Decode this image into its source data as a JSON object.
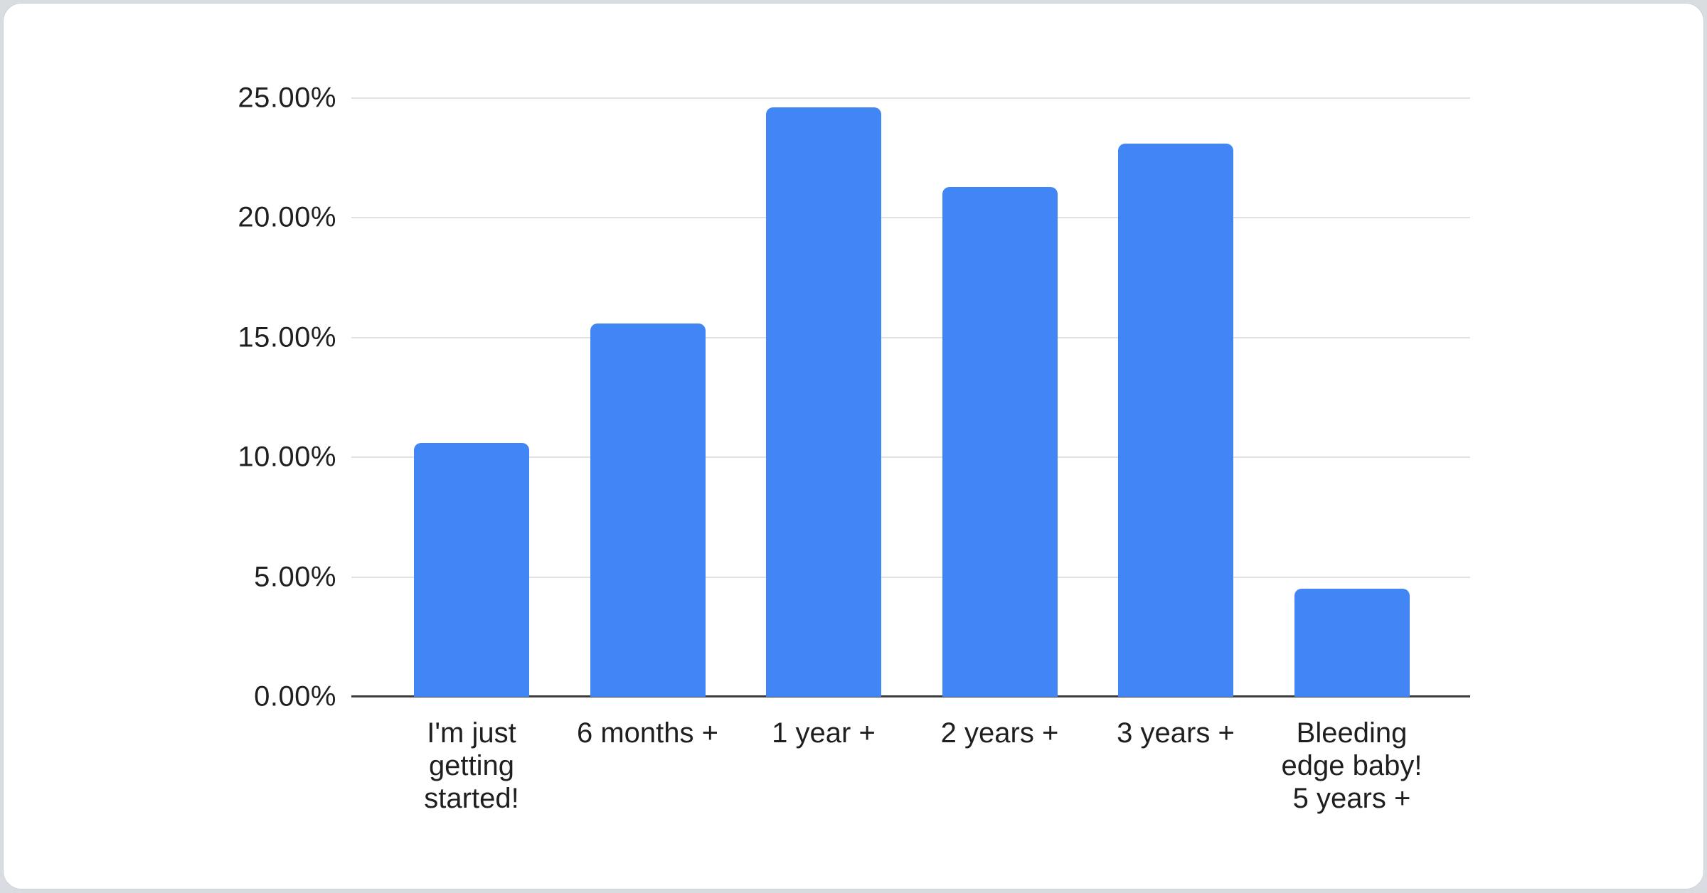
{
  "page": {
    "background": "#d9dde1",
    "card_background": "#ffffff",
    "card_border": "#cdd2d8"
  },
  "chart_data": {
    "type": "bar",
    "title": "",
    "xlabel": "",
    "ylabel": "",
    "unit": "%",
    "categories": [
      "I'm just getting started!",
      "6 months +",
      "1 year +",
      "2 years +",
      "3 years +",
      "Bleeding edge baby! 5 years +"
    ],
    "category_lines": [
      [
        "I'm just",
        "getting",
        "started!"
      ],
      [
        "6 months +"
      ],
      [
        "1 year +"
      ],
      [
        "2 years +"
      ],
      [
        "3 years +"
      ],
      [
        "Bleeding",
        "edge baby!",
        "5 years +"
      ]
    ],
    "values": [
      10.6,
      15.6,
      24.6,
      21.3,
      23.1,
      4.5
    ],
    "y_ticks": [
      0,
      5,
      10,
      15,
      20,
      25
    ],
    "y_tick_labels": [
      "0.00%",
      "5.00%",
      "10.00%",
      "15.00%",
      "20.00%",
      "25.00%"
    ],
    "ylim": [
      0,
      25
    ],
    "grid": true,
    "legend": "none",
    "bar_color": "#4285f4",
    "gridline_color": "#e2e2e2",
    "axis_line_color": "#3b3b3b",
    "label_color": "#1f1f1f"
  }
}
